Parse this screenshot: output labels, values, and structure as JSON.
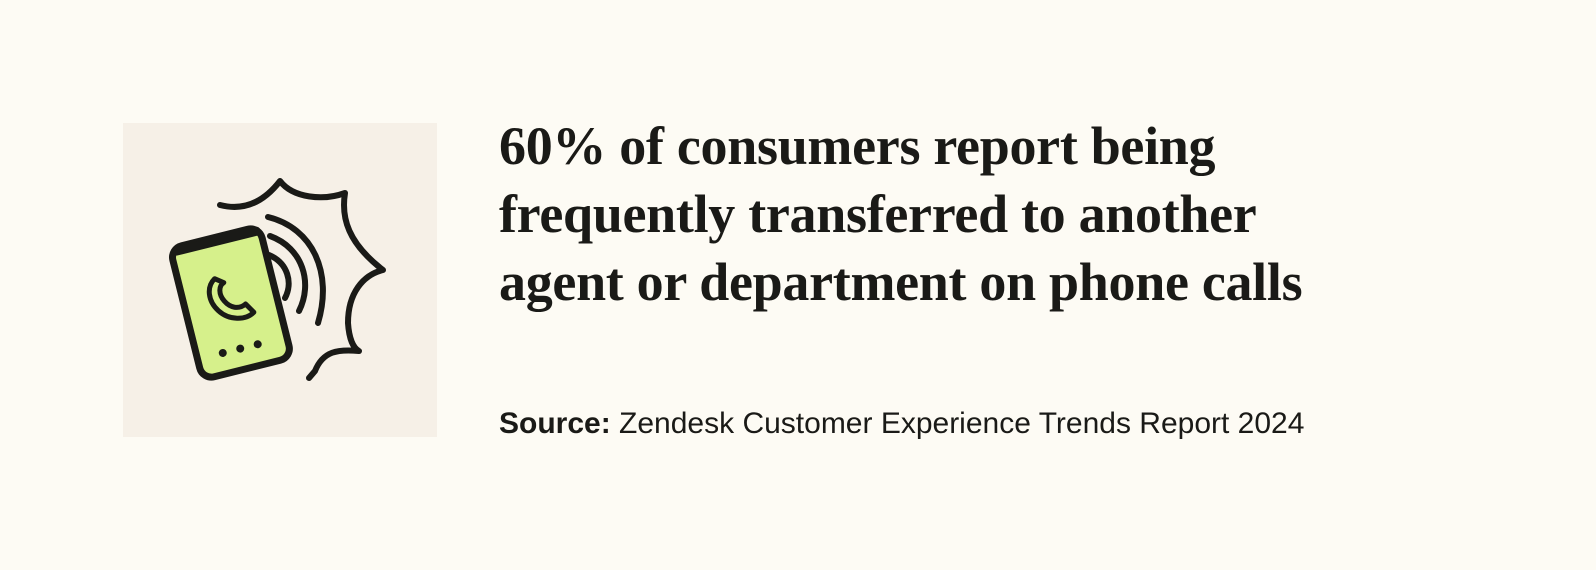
{
  "headline_lines": [
    "60% of consumers report being",
    "frequently transferred to another",
    "agent or department on phone calls"
  ],
  "source": {
    "label": "Source:",
    "text": "Zendesk Customer Experience Trends Report 2024"
  }
}
